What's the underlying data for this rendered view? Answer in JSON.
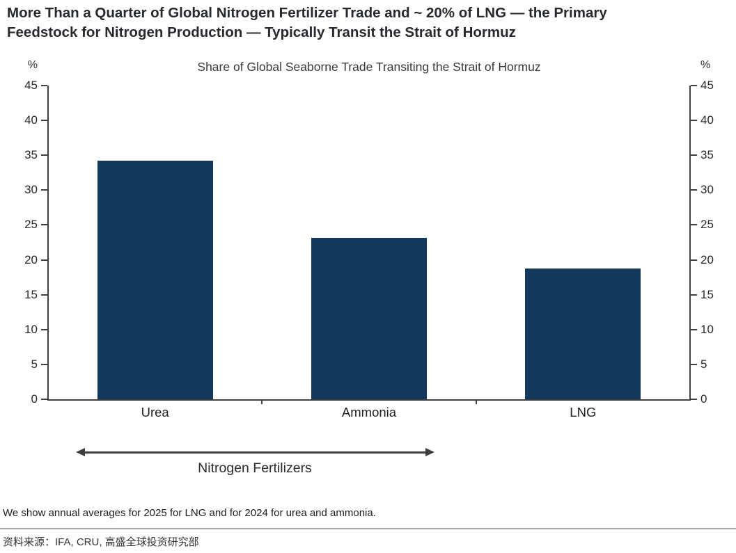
{
  "headline": {
    "line1": "More Than a Quarter of Global Nitrogen Fertilizer Trade and ~ 20% of LNG — the Primary",
    "line2": "Feedstock for Nitrogen Production — Typically Transit the Strait of Hormuz"
  },
  "chart_data": {
    "type": "bar",
    "title": "Share of Global Seaborne Trade Transiting the Strait of Hormuz",
    "unit": "%",
    "categories": [
      "Urea",
      "Ammonia",
      "LNG"
    ],
    "values": [
      34.2,
      23.1,
      18.8
    ],
    "ylim": [
      0,
      45
    ],
    "ytick_step": 5,
    "grid": false,
    "legend": "none",
    "axis_sides": [
      "left",
      "right"
    ],
    "annotation": {
      "label": "Nitrogen Fertilizers",
      "covers": [
        "Urea",
        "Ammonia"
      ],
      "style": "double-headed-arrow"
    }
  },
  "colors": {
    "bar": "#133A5C",
    "axis": "#404040",
    "divider": "#A3ABB1",
    "headline_text": "#26292E",
    "body_text": "#2A2A2A"
  },
  "footnote": "We show annual averages for 2025 for LNG and for 2024 for urea and ammonia.",
  "source": "资料来源：IFA, CRU, 高盛全球投资研究部"
}
